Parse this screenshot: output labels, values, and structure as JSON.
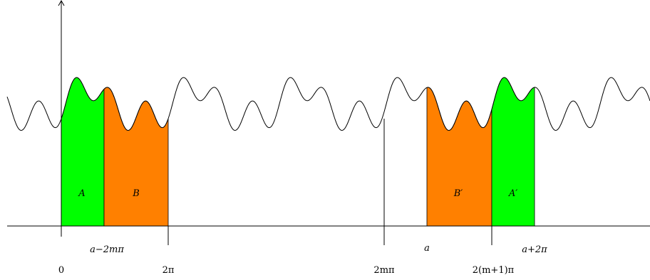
{
  "regions": {
    "A": {
      "label": "A",
      "color": "#00ff00"
    },
    "B": {
      "label": "B",
      "color": "#ff8000"
    },
    "B_prime": {
      "label": "B′",
      "color": "#ff8000"
    },
    "A_prime": {
      "label": "A′",
      "color": "#00ff00"
    }
  },
  "tick_labels": {
    "zero": "0",
    "a_minus": "a−2mπ",
    "two_pi": "2π",
    "two_m_pi": "2mπ",
    "a": "a",
    "two_m1_pi": "2(m+1)π",
    "a_plus": "a+2π"
  },
  "colors": {
    "curve": "#000000",
    "green": "#00ff00",
    "orange": "#ff8000"
  }
}
